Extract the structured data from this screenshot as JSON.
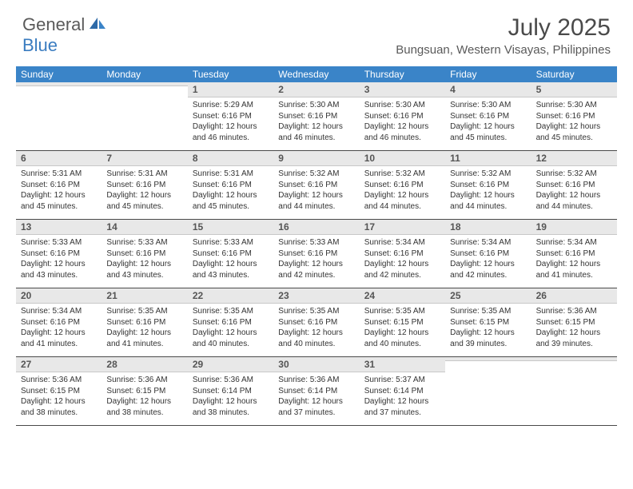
{
  "logo": {
    "general": "General",
    "blue": "Blue"
  },
  "title": "July 2025",
  "location": "Bungsuan, Western Visayas, Philippines",
  "colors": {
    "header_bar": "#3a84c8",
    "day_header_bg": "#e8e8e8",
    "logo_gray": "#5a5a5a",
    "logo_blue": "#3a7cc0"
  },
  "weekdays": [
    "Sunday",
    "Monday",
    "Tuesday",
    "Wednesday",
    "Thursday",
    "Friday",
    "Saturday"
  ],
  "weeks": [
    [
      {
        "num": "",
        "sunrise": "",
        "sunset": "",
        "daylight": ""
      },
      {
        "num": "",
        "sunrise": "",
        "sunset": "",
        "daylight": ""
      },
      {
        "num": "1",
        "sunrise": "Sunrise: 5:29 AM",
        "sunset": "Sunset: 6:16 PM",
        "daylight": "Daylight: 12 hours and 46 minutes."
      },
      {
        "num": "2",
        "sunrise": "Sunrise: 5:30 AM",
        "sunset": "Sunset: 6:16 PM",
        "daylight": "Daylight: 12 hours and 46 minutes."
      },
      {
        "num": "3",
        "sunrise": "Sunrise: 5:30 AM",
        "sunset": "Sunset: 6:16 PM",
        "daylight": "Daylight: 12 hours and 46 minutes."
      },
      {
        "num": "4",
        "sunrise": "Sunrise: 5:30 AM",
        "sunset": "Sunset: 6:16 PM",
        "daylight": "Daylight: 12 hours and 45 minutes."
      },
      {
        "num": "5",
        "sunrise": "Sunrise: 5:30 AM",
        "sunset": "Sunset: 6:16 PM",
        "daylight": "Daylight: 12 hours and 45 minutes."
      }
    ],
    [
      {
        "num": "6",
        "sunrise": "Sunrise: 5:31 AM",
        "sunset": "Sunset: 6:16 PM",
        "daylight": "Daylight: 12 hours and 45 minutes."
      },
      {
        "num": "7",
        "sunrise": "Sunrise: 5:31 AM",
        "sunset": "Sunset: 6:16 PM",
        "daylight": "Daylight: 12 hours and 45 minutes."
      },
      {
        "num": "8",
        "sunrise": "Sunrise: 5:31 AM",
        "sunset": "Sunset: 6:16 PM",
        "daylight": "Daylight: 12 hours and 45 minutes."
      },
      {
        "num": "9",
        "sunrise": "Sunrise: 5:32 AM",
        "sunset": "Sunset: 6:16 PM",
        "daylight": "Daylight: 12 hours and 44 minutes."
      },
      {
        "num": "10",
        "sunrise": "Sunrise: 5:32 AM",
        "sunset": "Sunset: 6:16 PM",
        "daylight": "Daylight: 12 hours and 44 minutes."
      },
      {
        "num": "11",
        "sunrise": "Sunrise: 5:32 AM",
        "sunset": "Sunset: 6:16 PM",
        "daylight": "Daylight: 12 hours and 44 minutes."
      },
      {
        "num": "12",
        "sunrise": "Sunrise: 5:32 AM",
        "sunset": "Sunset: 6:16 PM",
        "daylight": "Daylight: 12 hours and 44 minutes."
      }
    ],
    [
      {
        "num": "13",
        "sunrise": "Sunrise: 5:33 AM",
        "sunset": "Sunset: 6:16 PM",
        "daylight": "Daylight: 12 hours and 43 minutes."
      },
      {
        "num": "14",
        "sunrise": "Sunrise: 5:33 AM",
        "sunset": "Sunset: 6:16 PM",
        "daylight": "Daylight: 12 hours and 43 minutes."
      },
      {
        "num": "15",
        "sunrise": "Sunrise: 5:33 AM",
        "sunset": "Sunset: 6:16 PM",
        "daylight": "Daylight: 12 hours and 43 minutes."
      },
      {
        "num": "16",
        "sunrise": "Sunrise: 5:33 AM",
        "sunset": "Sunset: 6:16 PM",
        "daylight": "Daylight: 12 hours and 42 minutes."
      },
      {
        "num": "17",
        "sunrise": "Sunrise: 5:34 AM",
        "sunset": "Sunset: 6:16 PM",
        "daylight": "Daylight: 12 hours and 42 minutes."
      },
      {
        "num": "18",
        "sunrise": "Sunrise: 5:34 AM",
        "sunset": "Sunset: 6:16 PM",
        "daylight": "Daylight: 12 hours and 42 minutes."
      },
      {
        "num": "19",
        "sunrise": "Sunrise: 5:34 AM",
        "sunset": "Sunset: 6:16 PM",
        "daylight": "Daylight: 12 hours and 41 minutes."
      }
    ],
    [
      {
        "num": "20",
        "sunrise": "Sunrise: 5:34 AM",
        "sunset": "Sunset: 6:16 PM",
        "daylight": "Daylight: 12 hours and 41 minutes."
      },
      {
        "num": "21",
        "sunrise": "Sunrise: 5:35 AM",
        "sunset": "Sunset: 6:16 PM",
        "daylight": "Daylight: 12 hours and 41 minutes."
      },
      {
        "num": "22",
        "sunrise": "Sunrise: 5:35 AM",
        "sunset": "Sunset: 6:16 PM",
        "daylight": "Daylight: 12 hours and 40 minutes."
      },
      {
        "num": "23",
        "sunrise": "Sunrise: 5:35 AM",
        "sunset": "Sunset: 6:16 PM",
        "daylight": "Daylight: 12 hours and 40 minutes."
      },
      {
        "num": "24",
        "sunrise": "Sunrise: 5:35 AM",
        "sunset": "Sunset: 6:15 PM",
        "daylight": "Daylight: 12 hours and 40 minutes."
      },
      {
        "num": "25",
        "sunrise": "Sunrise: 5:35 AM",
        "sunset": "Sunset: 6:15 PM",
        "daylight": "Daylight: 12 hours and 39 minutes."
      },
      {
        "num": "26",
        "sunrise": "Sunrise: 5:36 AM",
        "sunset": "Sunset: 6:15 PM",
        "daylight": "Daylight: 12 hours and 39 minutes."
      }
    ],
    [
      {
        "num": "27",
        "sunrise": "Sunrise: 5:36 AM",
        "sunset": "Sunset: 6:15 PM",
        "daylight": "Daylight: 12 hours and 38 minutes."
      },
      {
        "num": "28",
        "sunrise": "Sunrise: 5:36 AM",
        "sunset": "Sunset: 6:15 PM",
        "daylight": "Daylight: 12 hours and 38 minutes."
      },
      {
        "num": "29",
        "sunrise": "Sunrise: 5:36 AM",
        "sunset": "Sunset: 6:14 PM",
        "daylight": "Daylight: 12 hours and 38 minutes."
      },
      {
        "num": "30",
        "sunrise": "Sunrise: 5:36 AM",
        "sunset": "Sunset: 6:14 PM",
        "daylight": "Daylight: 12 hours and 37 minutes."
      },
      {
        "num": "31",
        "sunrise": "Sunrise: 5:37 AM",
        "sunset": "Sunset: 6:14 PM",
        "daylight": "Daylight: 12 hours and 37 minutes."
      },
      {
        "num": "",
        "sunrise": "",
        "sunset": "",
        "daylight": ""
      },
      {
        "num": "",
        "sunrise": "",
        "sunset": "",
        "daylight": ""
      }
    ]
  ]
}
